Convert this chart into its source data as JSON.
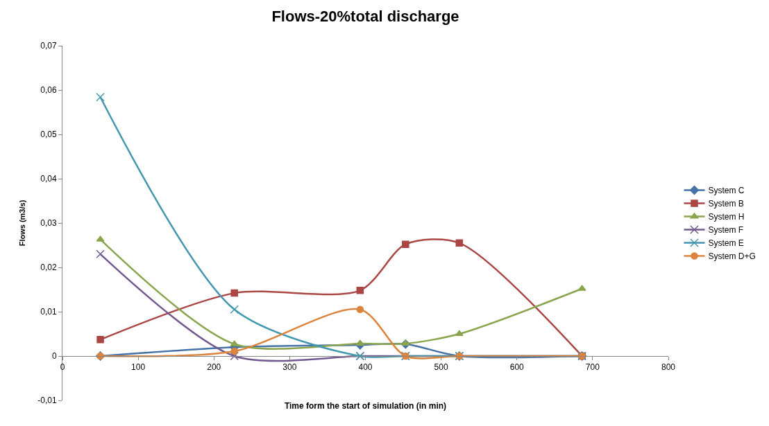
{
  "chart_data": {
    "type": "line",
    "title": "Flows-20%total discharge",
    "xlabel": "Time form the start of simulation (in min)",
    "ylabel": "Flows (m3/s)",
    "x": [
      50,
      227,
      393,
      453,
      524,
      686
    ],
    "series": [
      {
        "name": "System C",
        "color": "#4572a7",
        "marker": "diamond",
        "values": [
          0,
          0.002,
          0.0025,
          0.0027,
          0,
          0
        ]
      },
      {
        "name": "System B",
        "color": "#aa4643",
        "marker": "square",
        "values": [
          0.0037,
          0.0142,
          0.0148,
          0.0252,
          0.0255,
          0
        ]
      },
      {
        "name": "System H",
        "color": "#89a54e",
        "marker": "triangle",
        "values": [
          0.0263,
          0.0027,
          0.0028,
          0.0028,
          0.005,
          0.0152
        ]
      },
      {
        "name": "System F",
        "color": "#71588f",
        "marker": "cross",
        "values": [
          0.023,
          0,
          0,
          0,
          0,
          0
        ]
      },
      {
        "name": "System E",
        "color": "#4198af",
        "marker": "cross",
        "values": [
          0.0584,
          0.0105,
          0,
          0,
          0,
          0
        ]
      },
      {
        "name": "System D+G",
        "color": "#db843d",
        "marker": "circle",
        "values": [
          0,
          0.0011,
          0.0105,
          0,
          0,
          0
        ]
      }
    ],
    "xlim": [
      0,
      800
    ],
    "xticks": [
      0,
      100,
      200,
      300,
      400,
      500,
      600,
      700,
      800
    ],
    "ylim": [
      -0.01,
      0.07
    ],
    "yticks": [
      {
        "value": -0.01,
        "label": "-0,01"
      },
      {
        "value": 0,
        "label": "0"
      },
      {
        "value": 0.01,
        "label": "0,01"
      },
      {
        "value": 0.02,
        "label": "0,02"
      },
      {
        "value": 0.03,
        "label": "0,03"
      },
      {
        "value": 0.04,
        "label": "0,04"
      },
      {
        "value": 0.05,
        "label": "0,05"
      },
      {
        "value": 0.06,
        "label": "0,06"
      },
      {
        "value": 0.07,
        "label": "0,07"
      }
    ],
    "grid": false,
    "legend": "right",
    "line_style": "solid"
  }
}
